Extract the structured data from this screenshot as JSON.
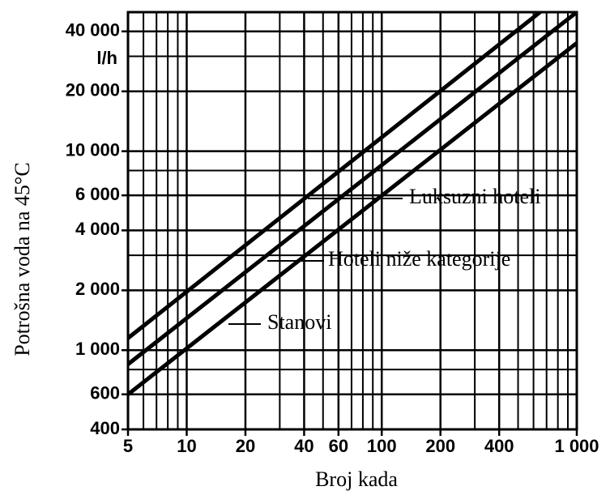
{
  "chart_data": {
    "type": "line",
    "y_label": "Potrošna voda na 45°C",
    "y_unit": "l/h",
    "x_label": "Broj kada",
    "log_x": true,
    "log_y": true,
    "grid": true,
    "x": [
      5,
      1000
    ],
    "series": [
      {
        "name": "Luksuzni hoteli",
        "color": "#000000",
        "values": [
          1150,
          70000
        ]
      },
      {
        "name": "Hoteli niže kategorije",
        "color": "#000000",
        "values": [
          850,
          50000
        ]
      },
      {
        "name": "Stanovi",
        "color": "#000000",
        "values": [
          600,
          35000
        ]
      }
    ],
    "xlim": [
      5,
      1000
    ],
    "xticks": [
      5,
      10,
      20,
      40,
      60,
      100,
      200,
      400,
      {
        "value": 1000,
        "label": "1 000"
      }
    ],
    "xminor_ticks": [
      6,
      7,
      8,
      9,
      30,
      50,
      70,
      80,
      90,
      300,
      500,
      600,
      700,
      800,
      900
    ],
    "ylim": [
      400,
      50000
    ],
    "yticks": [
      400,
      600,
      {
        "value": 1000,
        "label": "1 000"
      },
      {
        "value": 2000,
        "label": "2 000"
      },
      {
        "value": 4000,
        "label": "4 000"
      },
      {
        "value": 6000,
        "label": "6 000"
      },
      {
        "value": 10000,
        "label": "10 000"
      },
      {
        "value": 20000,
        "label": "20 000"
      },
      {
        "value": 40000,
        "label": "40 000"
      }
    ],
    "yminor_ticks": [
      800,
      3000,
      8000,
      30000
    ]
  }
}
